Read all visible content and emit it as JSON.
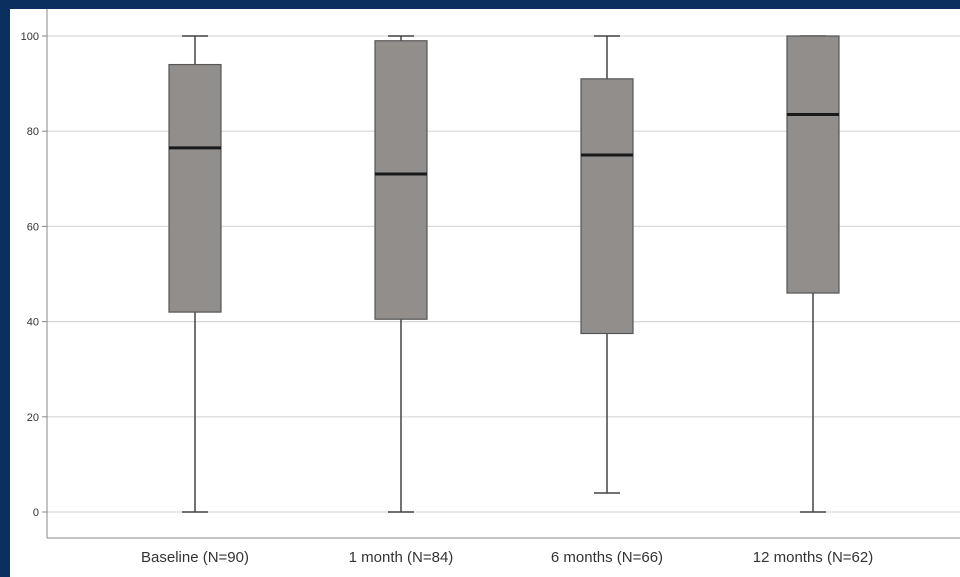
{
  "chart_data": {
    "type": "boxplot",
    "title": "",
    "xlabel": "",
    "ylabel": "",
    "ylim": [
      0,
      100
    ],
    "yticks": [
      0,
      20,
      40,
      60,
      80,
      100
    ],
    "grid": true,
    "categories": [
      "Baseline (N=90)",
      "1 month (N=84)",
      "6 months (N=66)",
      "12 months (N=62)"
    ],
    "boxes": [
      {
        "whisker_low": 0,
        "q1": 42,
        "median": 76.5,
        "q3": 94,
        "whisker_high": 100
      },
      {
        "whisker_low": 0,
        "q1": 40.5,
        "median": 71,
        "q3": 99,
        "whisker_high": 100
      },
      {
        "whisker_low": 4,
        "q1": 37.5,
        "median": 75,
        "q3": 91,
        "whisker_high": 100
      },
      {
        "whisker_low": 0,
        "q1": 46,
        "median": 83.5,
        "q3": 100,
        "whisker_high": 100
      }
    ],
    "colors": {
      "box_fill": "#928e8c",
      "box_stroke": "#555555",
      "median": "#1a1a1a",
      "whisker": "#444444",
      "grid": "#d9d9d9",
      "axis": "#888888"
    }
  }
}
